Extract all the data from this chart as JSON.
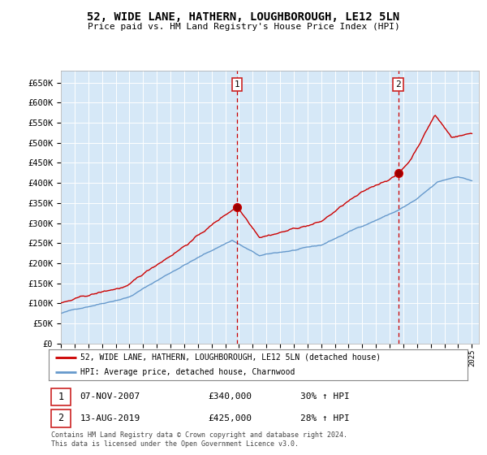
{
  "title": "52, WIDE LANE, HATHERN, LOUGHBOROUGH, LE12 5LN",
  "subtitle": "Price paid vs. HM Land Registry's House Price Index (HPI)",
  "plot_bg_color": "#d6e8f7",
  "ylim": [
    0,
    680000
  ],
  "yticks": [
    0,
    50000,
    100000,
    150000,
    200000,
    250000,
    300000,
    350000,
    400000,
    450000,
    500000,
    550000,
    600000,
    650000
  ],
  "year_start": 1995,
  "year_end": 2025,
  "red_line_color": "#cc0000",
  "blue_line_color": "#6699cc",
  "vline_color": "#cc0000",
  "purchase1_year": 2007.85,
  "purchase1_value": 340000,
  "purchase2_year": 2019.62,
  "purchase2_value": 425000,
  "legend_label_red": "52, WIDE LANE, HATHERN, LOUGHBOROUGH, LE12 5LN (detached house)",
  "legend_label_blue": "HPI: Average price, detached house, Charnwood",
  "annotation1_date": "07-NOV-2007",
  "annotation1_price": "£340,000",
  "annotation1_pct": "30% ↑ HPI",
  "annotation2_date": "13-AUG-2019",
  "annotation2_price": "£425,000",
  "annotation2_pct": "28% ↑ HPI",
  "footer": "Contains HM Land Registry data © Crown copyright and database right 2024.\nThis data is licensed under the Open Government Licence v3.0."
}
